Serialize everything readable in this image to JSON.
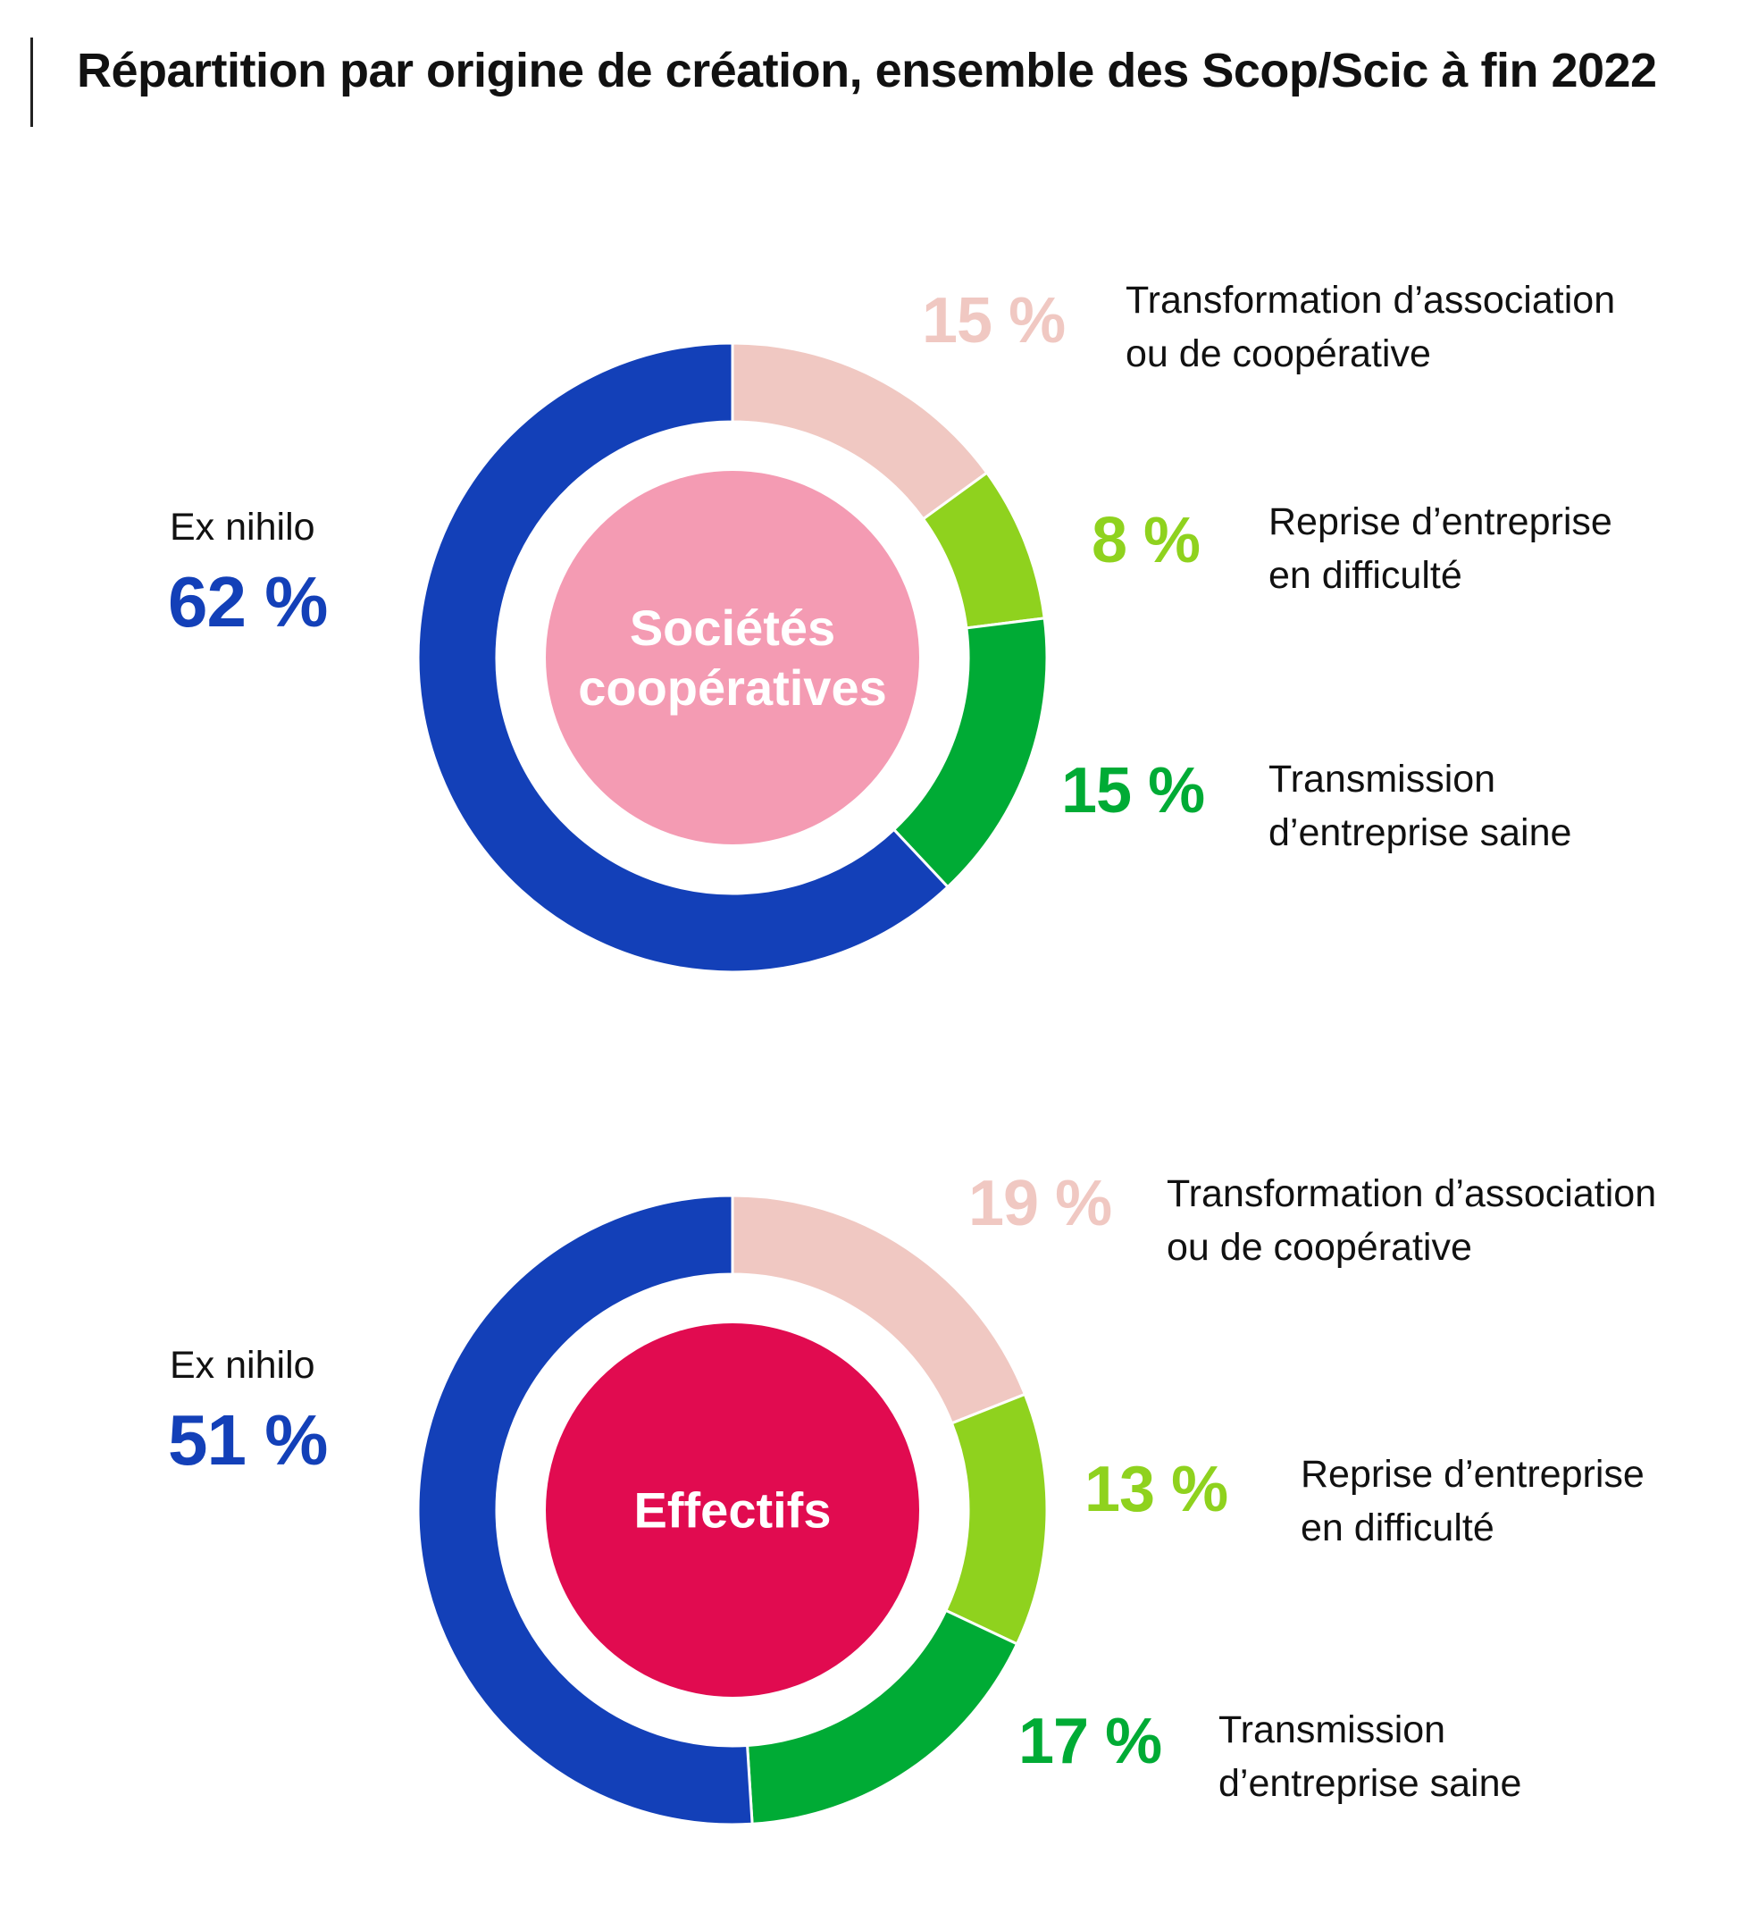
{
  "title": "Répartition par origine de création, ensemble des Scop/Scic à fin 2022",
  "colors": {
    "ex_nihilo": "#1340B8",
    "transformation": "#F0C8C2",
    "reprise": "#8FD21E",
    "transmission": "#00AB35",
    "center_societes": "#F49BB3",
    "center_effectifs": "#E10B50"
  },
  "labels": {
    "ex_nihilo": "Ex nihilo",
    "transformation_line1": "Transformation d’association",
    "transformation_line2": "ou de coopérative",
    "reprise_line1": "Reprise d’entreprise",
    "reprise_line2": "en difficulté",
    "transmission_line1": "Transmission",
    "transmission_line2": "d’entreprise saine"
  },
  "chart_data": [
    {
      "type": "pie",
      "variant": "donut",
      "center_label_line1": "Sociétés",
      "center_label_line2": "coopératives",
      "start": "top",
      "direction": "clockwise",
      "slices": [
        {
          "key": "transformation",
          "value": 15,
          "display": "15 %"
        },
        {
          "key": "reprise",
          "value": 8,
          "display": "8 %"
        },
        {
          "key": "transmission",
          "value": 15,
          "display": "15 %"
        },
        {
          "key": "ex_nihilo",
          "value": 62,
          "display": "62 %"
        }
      ]
    },
    {
      "type": "pie",
      "variant": "donut",
      "center_label_line1": "Effectifs",
      "center_label_line2": "",
      "start": "top",
      "direction": "clockwise",
      "slices": [
        {
          "key": "transformation",
          "value": 19,
          "display": "19 %"
        },
        {
          "key": "reprise",
          "value": 13,
          "display": "13 %"
        },
        {
          "key": "transmission",
          "value": 17,
          "display": "17 %"
        },
        {
          "key": "ex_nihilo",
          "value": 51,
          "display": "51 %"
        }
      ]
    }
  ]
}
